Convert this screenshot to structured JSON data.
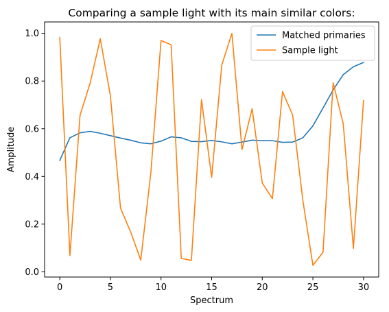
{
  "chart_data": {
    "type": "line",
    "title": "Comparing a sample light with its main similar colors:",
    "xlabel": "Spectrum",
    "ylabel": "Amplitude",
    "xlim": [
      -1.5,
      31.5
    ],
    "ylim": [
      -0.022,
      1.048
    ],
    "xticks": [
      0,
      5,
      10,
      15,
      20,
      25,
      30
    ],
    "xtick_labels": [
      "0",
      "5",
      "10",
      "15",
      "20",
      "25",
      "30"
    ],
    "yticks": [
      0.0,
      0.2,
      0.4,
      0.6,
      0.8,
      1.0
    ],
    "ytick_labels": [
      "0.0",
      "0.2",
      "0.4",
      "0.6",
      "0.8",
      "1.0"
    ],
    "grid": false,
    "legend_position": "upper right",
    "x": [
      0,
      1,
      2,
      3,
      4,
      5,
      6,
      7,
      8,
      9,
      10,
      11,
      12,
      13,
      14,
      15,
      16,
      17,
      18,
      19,
      20,
      21,
      22,
      23,
      24,
      25,
      26,
      27,
      28,
      29,
      30
    ],
    "series": [
      {
        "name": "Matched primaries",
        "color": "#1f77b4",
        "values": [
          0.467,
          0.562,
          0.583,
          0.589,
          0.581,
          0.571,
          0.561,
          0.552,
          0.541,
          0.537,
          0.548,
          0.566,
          0.562,
          0.547,
          0.546,
          0.551,
          0.545,
          0.537,
          0.544,
          0.552,
          0.55,
          0.55,
          0.543,
          0.544,
          0.562,
          0.612,
          0.687,
          0.763,
          0.827,
          0.86,
          0.878
        ]
      },
      {
        "name": "Sample light",
        "color": "#ff7f0e",
        "values": [
          0.983,
          0.068,
          0.656,
          0.792,
          0.978,
          0.738,
          0.267,
          0.167,
          0.049,
          0.418,
          0.97,
          0.952,
          0.056,
          0.048,
          0.722,
          0.396,
          0.867,
          1.0,
          0.513,
          0.684,
          0.372,
          0.307,
          0.756,
          0.657,
          0.302,
          0.027,
          0.082,
          0.793,
          0.62,
          0.098,
          0.718
        ]
      }
    ]
  }
}
